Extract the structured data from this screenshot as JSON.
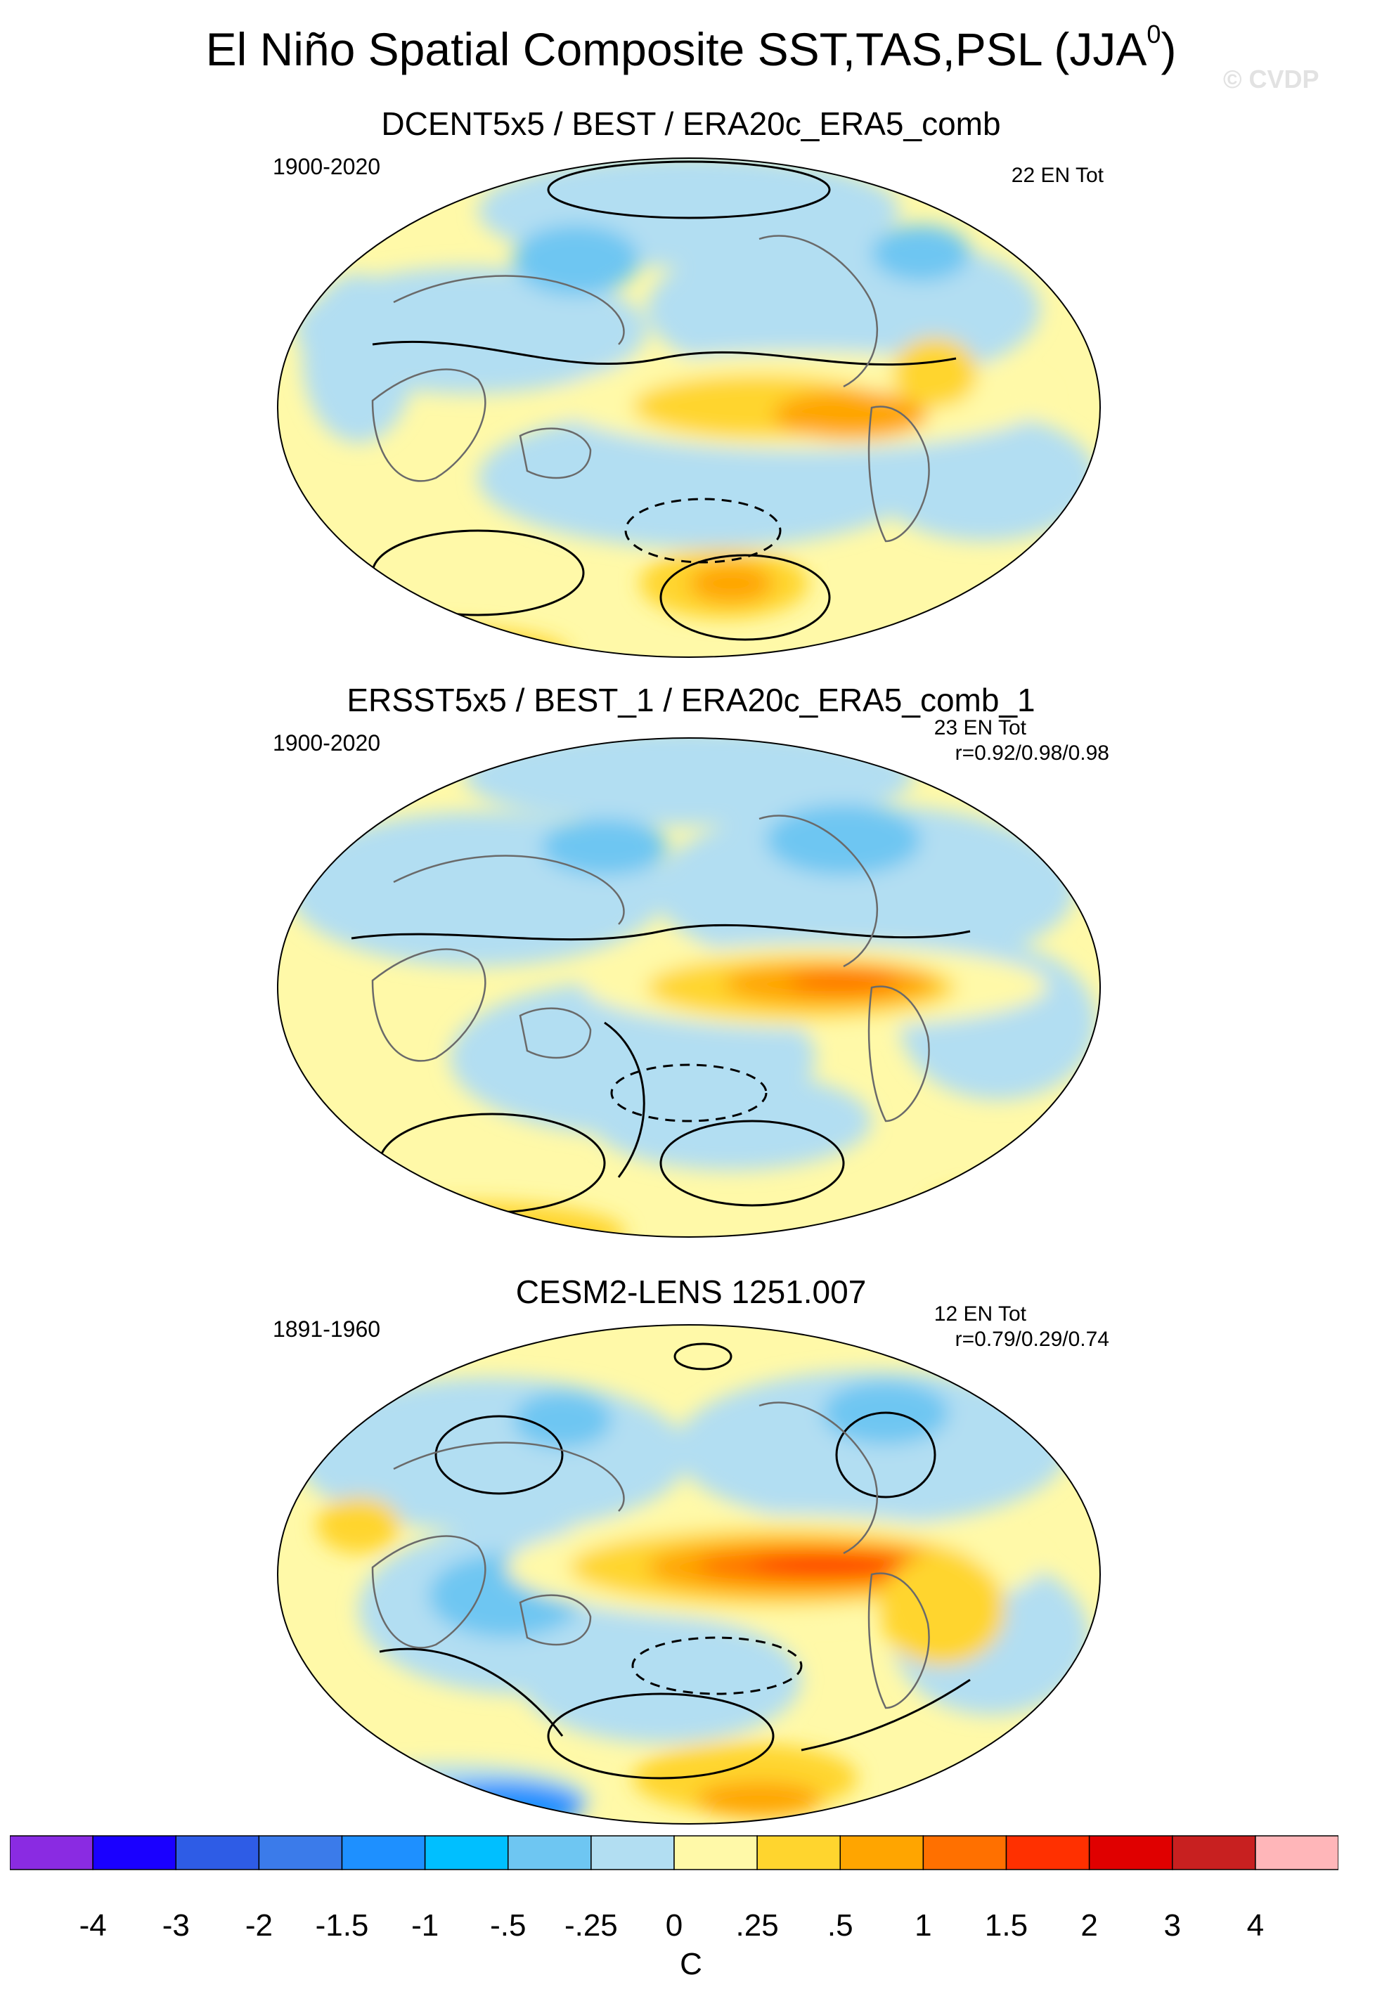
{
  "figure": {
    "title": "El Niño Spatial Composite SST,TAS,PSL (JJA",
    "title_superscript": "0",
    "title_close": ")",
    "watermark": "© CVDP"
  },
  "panels": [
    {
      "title": "DCENT5x5 / BEST / ERA20c_ERA5_comb",
      "period": "1900-2020",
      "events": "22 EN Tot",
      "correlation": ""
    },
    {
      "title": "ERSST5x5 / BEST_1 / ERA20c_ERA5_comb_1",
      "period": "1900-2020",
      "events": "23 EN Tot",
      "correlation": "r=0.92/0.98/0.98"
    },
    {
      "title": "CESM2-LENS 1251.007",
      "period": "1891-1960",
      "events": "12 EN Tot",
      "correlation": "r=0.79/0.29/0.74"
    }
  ],
  "colorbar": {
    "units": "C",
    "labels": [
      "-4",
      "-3",
      "-2",
      "-1.5",
      "-1",
      "-.5",
      "-.25",
      "0",
      ".25",
      ".5",
      "1",
      "1.5",
      "2",
      "3",
      "4"
    ],
    "colors": [
      "#8a2be2",
      "#1a00ff",
      "#2e5ce6",
      "#3b7bea",
      "#1e90ff",
      "#00bfff",
      "#6ec6f2",
      "#b2def2",
      "#fff9a8",
      "#ffd52e",
      "#ffa500",
      "#ff7000",
      "#ff3000",
      "#e00000",
      "#c82020",
      "#ffb6b9"
    ]
  }
}
